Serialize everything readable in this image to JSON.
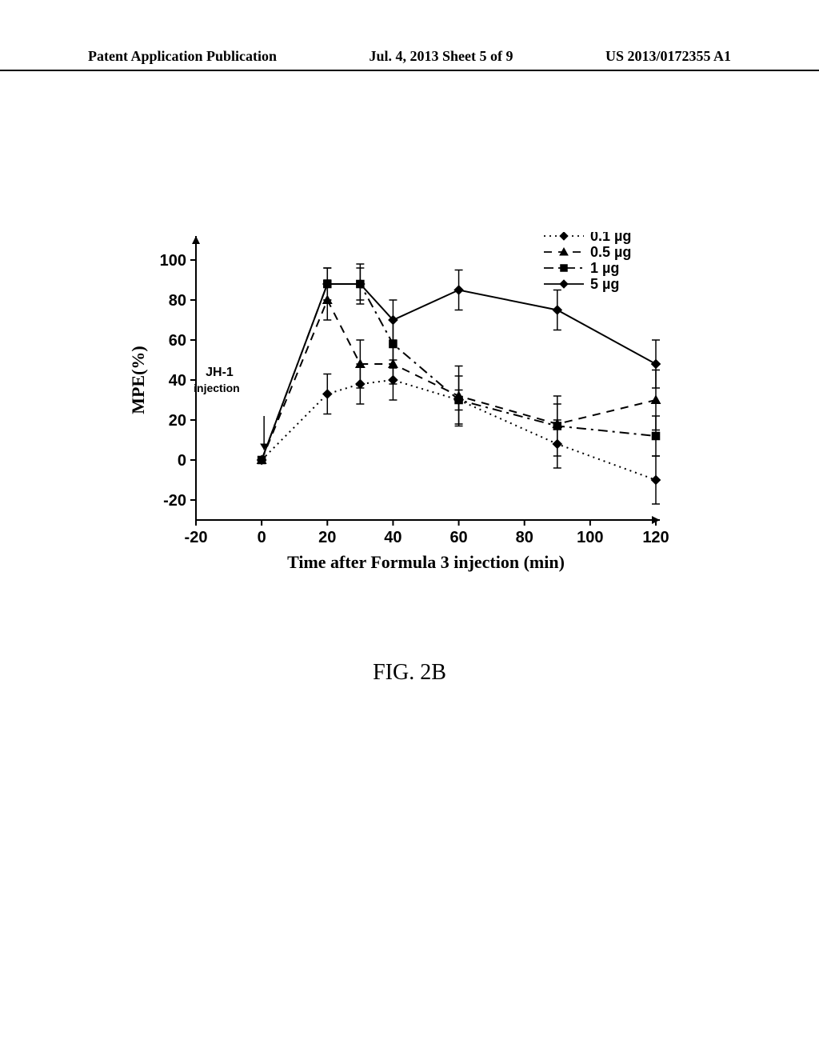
{
  "header": {
    "left": "Patent Application Publication",
    "center": "Jul. 4, 2013  Sheet 5 of 9",
    "right": "US 2013/0172355 A1"
  },
  "figure_caption": "FIG. 2B",
  "chart": {
    "type": "line",
    "xlabel": "Time after Formula 3 injection (min)",
    "ylabel": "MPE(%)",
    "annotation": {
      "text1": "JH-1",
      "text2": "injection",
      "x": 0,
      "y_label": 40
    },
    "xlim": [
      -20,
      120
    ],
    "ylim": [
      -30,
      110
    ],
    "xticks": [
      -20,
      0,
      20,
      40,
      60,
      80,
      100,
      120
    ],
    "yticks": [
      -20,
      0,
      20,
      40,
      60,
      80,
      100
    ],
    "tick_fontsize": 20,
    "label_fontsize": 22,
    "legend_fontsize": 18,
    "background_color": "#ffffff",
    "axis_color": "#000000",
    "marker_size": 8,
    "line_width": 2,
    "series": [
      {
        "name": "0.1 µg",
        "marker": "diamond",
        "dash": "dot",
        "color": "#000000",
        "x": [
          0,
          20,
          30,
          40,
          60,
          90,
          120
        ],
        "y": [
          0,
          33,
          38,
          40,
          30,
          8,
          -10
        ],
        "err": [
          0,
          10,
          10,
          10,
          5,
          12,
          12
        ]
      },
      {
        "name": "0.5 µg",
        "marker": "triangle",
        "dash": "dash",
        "color": "#000000",
        "x": [
          0,
          20,
          30,
          40,
          60,
          90,
          120
        ],
        "y": [
          0,
          80,
          48,
          48,
          32,
          18,
          30
        ],
        "err": [
          0,
          10,
          12,
          10,
          15,
          10,
          15
        ]
      },
      {
        "name": "1 µg",
        "marker": "square",
        "dash": "dashdot",
        "color": "#000000",
        "x": [
          0,
          20,
          30,
          40,
          60,
          90,
          120
        ],
        "y": [
          0,
          88,
          88,
          58,
          30,
          17,
          12
        ],
        "err": [
          0,
          8,
          10,
          12,
          12,
          15,
          10
        ]
      },
      {
        "name": "5 µg",
        "marker": "diamond",
        "dash": "solid",
        "color": "#000000",
        "x": [
          0,
          20,
          30,
          40,
          60,
          90,
          120
        ],
        "y": [
          0,
          88,
          88,
          70,
          85,
          75,
          48
        ],
        "err": [
          0,
          8,
          8,
          10,
          10,
          10,
          12
        ]
      }
    ]
  }
}
